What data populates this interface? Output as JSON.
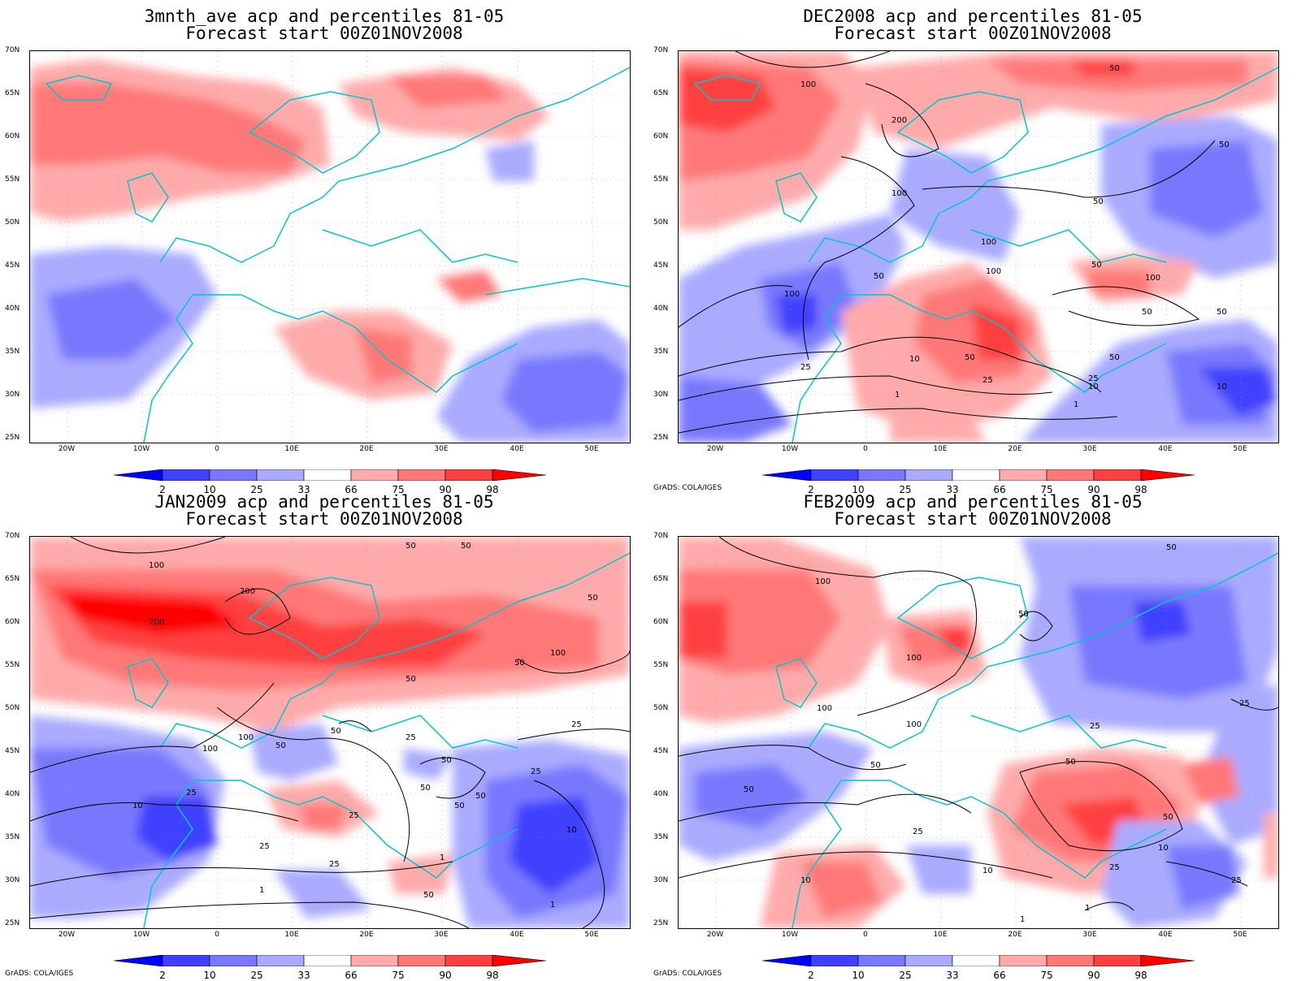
{
  "panels": [
    {
      "title_line1": "3mnth_ave acp and percentiles 81-05",
      "title_line2": "Forecast start 00Z01NOV2008",
      "credit": ""
    },
    {
      "title_line1": "DEC2008 acp and percentiles 81-05",
      "title_line2": "Forecast start 00Z01NOV2008",
      "credit": "GrADS: COLA/IGES",
      "contour_labels": [
        "100",
        "200",
        "50",
        "100",
        "50",
        "50",
        "100",
        "100",
        "50",
        "100",
        "50",
        "50",
        "50",
        "25",
        "10",
        "50",
        "25",
        "1",
        "25",
        "10",
        "1",
        "100",
        "50",
        "10"
      ]
    },
    {
      "title_line1": "JAN2009 acp and percentiles 81-05",
      "title_line2": "Forecast start 00Z01NOV2008",
      "credit": "GrADS: COLA/IGES",
      "contour_labels": [
        "100",
        "200",
        "200",
        "50",
        "50",
        "50",
        "50",
        "100",
        "50",
        "100",
        "50",
        "25",
        "100",
        "50",
        "25",
        "50",
        "25",
        "50",
        "50",
        "50",
        "25",
        "10",
        "25",
        "25",
        "1",
        "1",
        "50",
        "25",
        "10",
        "1"
      ]
    },
    {
      "title_line1": "FEB2009 acp and percentiles 81-05",
      "title_line2": "Forecast start 00Z01NOV2008",
      "credit": "GrADS: COLA/IGES",
      "contour_labels": [
        "100",
        "50",
        "50",
        "100",
        "100",
        "100",
        "25",
        "25",
        "50",
        "50",
        "50",
        "25",
        "10",
        "10",
        "50",
        "25",
        "10",
        "25",
        "1",
        "1"
      ]
    }
  ],
  "y_axis_labels": [
    "70N",
    "65N",
    "60N",
    "55N",
    "50N",
    "45N",
    "40N",
    "35N",
    "30N",
    "25N"
  ],
  "x_axis_labels": [
    "20W",
    "10W",
    "0",
    "10E",
    "20E",
    "30E",
    "40E",
    "50E"
  ],
  "colorbar_labels": [
    "2",
    "10",
    "25",
    "33",
    "66",
    "75",
    "90",
    "98"
  ],
  "colorbar_colors": [
    "#0000ff",
    "#4040ff",
    "#7878ff",
    "#aaaaff",
    "#ffffff",
    "#ffaaaa",
    "#ff7878",
    "#ff4040",
    "#ff0000"
  ],
  "colors": {
    "coast": "#00c8c8",
    "contour": "#000000",
    "grid": "#999999"
  }
}
